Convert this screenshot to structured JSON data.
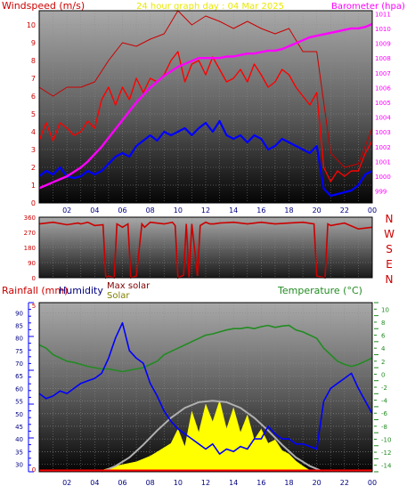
{
  "page": {
    "title": "24 hour graph day : 04 Mar 2025",
    "panel_top": {
      "left_label": "Windspeed (m/s)",
      "right_label": "Barometer (hpa)"
    },
    "panel_mid": {
      "compass": [
        "N",
        "W",
        "S",
        "E",
        "N"
      ]
    },
    "panel_bot": {
      "label_rain": "Rainfall (mm)",
      "label_hum": "Humidity",
      "label_maxsolar": "Max solar",
      "label_solar": "Solar",
      "label_temp": "Temperature (°C)"
    },
    "colors": {
      "windspeed": "#ff0000",
      "gust": "#cc0000",
      "avgwind": "#0000ff",
      "barometer": "#ff00ff",
      "direction": "#cc0000",
      "humidity": "#0000ff",
      "temperature": "#228b22",
      "solar": "#ffff00",
      "maxsolar": "#b0b0b0",
      "rainfall": "#ff0000"
    }
  },
  "chart_data": [
    {
      "type": "line",
      "x_ticks": [
        "02",
        "04",
        "06",
        "08",
        "10",
        "12",
        "14",
        "16",
        "18",
        "20",
        "22",
        "00"
      ],
      "x_hours": [
        0,
        24
      ],
      "y_left": {
        "label": "Windspeed (m/s)",
        "range": [
          0,
          10.8
        ],
        "ticks": [
          0,
          1,
          2,
          3,
          4,
          5,
          6,
          7,
          8,
          9,
          10
        ]
      },
      "y_right": {
        "label": "Barometer (hpa)",
        "range": [
          998.2,
          1011.2
        ],
        "ticks": [
          999,
          1000,
          1001,
          1002,
          1003,
          1004,
          1005,
          1006,
          1007,
          1008,
          1009,
          1010,
          1011
        ]
      },
      "series": [
        {
          "name": "Windspeed (m/s)",
          "axis": "left",
          "x": [
            0,
            0.5,
            1,
            1.5,
            2,
            2.5,
            3,
            3.5,
            4,
            4.5,
            5,
            5.5,
            6,
            6.5,
            7,
            7.5,
            8,
            8.5,
            9,
            9.5,
            10,
            10.5,
            11,
            11.5,
            12,
            12.5,
            13,
            13.5,
            14,
            14.5,
            15,
            15.5,
            16,
            16.5,
            17,
            17.5,
            18,
            18.5,
            19,
            19.5,
            20,
            20.5,
            21,
            21.5,
            22,
            22.5,
            23,
            23.5,
            24
          ],
          "y": [
            3.5,
            4.5,
            3.5,
            4.5,
            4.2,
            3.8,
            4,
            4.6,
            4.2,
            5.8,
            6.5,
            5.5,
            6.5,
            5.8,
            7,
            6.2,
            7,
            6.8,
            7.2,
            8,
            8.5,
            6.8,
            7.8,
            8,
            7.2,
            8.2,
            7.5,
            6.8,
            7,
            7.5,
            6.8,
            7.8,
            7.2,
            6.5,
            6.8,
            7.5,
            7.2,
            6.5,
            6,
            5.5,
            6.2,
            2,
            1.2,
            1.8,
            1.5,
            1.8,
            1.8,
            2.8,
            3.5
          ]
        },
        {
          "name": "Gust",
          "axis": "left",
          "x": [
            0,
            1,
            2,
            3,
            4,
            5,
            6,
            7,
            8,
            9,
            10,
            11,
            12,
            13,
            14,
            15,
            16,
            17,
            18,
            19,
            20,
            21,
            22,
            23,
            24
          ],
          "y": [
            6.5,
            6,
            6.5,
            6.5,
            6.8,
            8,
            9,
            8.8,
            9.2,
            9.5,
            10.8,
            10,
            10.5,
            10.2,
            9.8,
            10.2,
            9.8,
            9.5,
            9.8,
            8.5,
            8.5,
            2.8,
            2,
            2.2,
            4.2
          ]
        },
        {
          "name": "Average wind",
          "axis": "left",
          "x": [
            0,
            0.5,
            1,
            1.5,
            2,
            2.5,
            3,
            3.5,
            4,
            4.5,
            5,
            5.5,
            6,
            6.5,
            7,
            7.5,
            8,
            8.5,
            9,
            9.5,
            10,
            10.5,
            11,
            11.5,
            12,
            12.5,
            13,
            13.5,
            14,
            14.5,
            15,
            15.5,
            16,
            16.5,
            17,
            17.5,
            18,
            18.5,
            19,
            19.5,
            20,
            20.5,
            21,
            21.5,
            22,
            22.5,
            23,
            23.5,
            24
          ],
          "y": [
            1.5,
            1.8,
            1.6,
            2,
            1.5,
            1.4,
            1.5,
            1.8,
            1.6,
            1.8,
            2.2,
            2.6,
            2.8,
            2.6,
            3.2,
            3.5,
            3.8,
            3.5,
            4,
            3.8,
            4,
            4.2,
            3.8,
            4.2,
            4.5,
            4,
            4.6,
            3.8,
            3.6,
            3.8,
            3.4,
            3.8,
            3.6,
            3,
            3.2,
            3.6,
            3.4,
            3.2,
            3,
            2.8,
            3.2,
            0.8,
            0.4,
            0.5,
            0.6,
            0.7,
            1,
            1.6,
            1.8
          ]
        },
        {
          "name": "Barometer (hpa)",
          "axis": "right",
          "x": [
            0,
            0.5,
            1,
            1.5,
            2,
            2.5,
            3,
            3.5,
            4,
            4.5,
            5,
            5.5,
            6,
            6.5,
            7,
            7.5,
            8,
            8.5,
            9,
            9.5,
            10,
            10.5,
            11,
            11.5,
            12,
            12.5,
            13,
            13.5,
            14,
            14.5,
            15,
            15.5,
            16,
            16.5,
            17,
            17.5,
            18,
            18.5,
            19,
            19.5,
            20,
            20.5,
            21,
            21.5,
            22,
            22.5,
            23,
            23.5,
            24
          ],
          "y": [
            999.2,
            999.4,
            999.6,
            999.8,
            1000,
            1000.3,
            1000.6,
            1001,
            1001.5,
            1002,
            1002.6,
            1003.2,
            1003.8,
            1004.4,
            1005,
            1005.5,
            1006,
            1006.4,
            1006.8,
            1007.1,
            1007.4,
            1007.6,
            1007.8,
            1008,
            1008,
            1008,
            1008,
            1008.1,
            1008.1,
            1008.2,
            1008.3,
            1008.3,
            1008.4,
            1008.5,
            1008.5,
            1008.6,
            1008.8,
            1009,
            1009.2,
            1009.4,
            1009.5,
            1009.6,
            1009.7,
            1009.8,
            1009.9,
            1010,
            1010,
            1010.1,
            1010.3
          ]
        }
      ]
    },
    {
      "type": "line",
      "y_ticks": [
        0,
        90,
        180,
        270,
        360
      ],
      "y_range": [
        0,
        360
      ],
      "series": [
        {
          "name": "Wind direction",
          "x": [
            0,
            1,
            2,
            2.8,
            3,
            3.5,
            4,
            4.6,
            4.8,
            5,
            5.4,
            5.6,
            6,
            6.4,
            6.6,
            7,
            7.4,
            7.6,
            8,
            9,
            9.6,
            9.8,
            10,
            10.4,
            10.6,
            10.8,
            11,
            11.4,
            11.6,
            12,
            12.3,
            12.6,
            13,
            14,
            15,
            16,
            17,
            18,
            19,
            19.8,
            20,
            20.6,
            20.8,
            21,
            22,
            23,
            24
          ],
          "y": [
            320,
            330,
            315,
            325,
            320,
            330,
            310,
            315,
            0,
            10,
            0,
            320,
            300,
            320,
            0,
            10,
            320,
            300,
            330,
            320,
            330,
            310,
            0,
            15,
            320,
            0,
            320,
            10,
            310,
            330,
            320,
            320,
            325,
            330,
            320,
            330,
            320,
            325,
            330,
            320,
            10,
            0,
            320,
            310,
            325,
            290,
            300
          ]
        }
      ]
    },
    {
      "type": "line",
      "x_ticks": [
        "02",
        "04",
        "06",
        "08",
        "10",
        "12",
        "14",
        "16",
        "18",
        "20",
        "22",
        "00"
      ],
      "y_left": {
        "label": "Humidity",
        "range": [
          27,
          94
        ],
        "ticks": [
          30,
          35,
          40,
          45,
          50,
          55,
          60,
          65,
          70,
          75,
          80,
          85,
          90
        ]
      },
      "y_rain": {
        "label": "Rainfall (mm)",
        "range": [
          0,
          5
        ]
      },
      "y_right": {
        "label": "Temperature (°C)",
        "range": [
          -15,
          11
        ],
        "ticks": [
          -14,
          -12,
          -10,
          -8,
          -6,
          -4,
          -2,
          0,
          2,
          4,
          6,
          8,
          10
        ]
      },
      "series": [
        {
          "name": "Humidity",
          "axis": "left",
          "x": [
            0,
            0.5,
            1,
            1.5,
            2,
            2.5,
            3,
            3.5,
            4,
            4.5,
            5,
            5.5,
            6,
            6.5,
            7,
            7.5,
            8,
            8.5,
            9,
            9.5,
            10,
            10.5,
            11,
            11.5,
            12,
            12.5,
            13,
            13.5,
            14,
            14.5,
            15,
            15.5,
            16,
            16.5,
            17,
            17.5,
            18,
            18.5,
            19,
            19.5,
            20,
            20.5,
            21,
            21.5,
            22,
            22.5,
            23,
            23.5,
            24
          ],
          "y": [
            58,
            56,
            57,
            59,
            58,
            60,
            62,
            63,
            64,
            66,
            72,
            80,
            86,
            75,
            72,
            70,
            62,
            57,
            51,
            47,
            44,
            42,
            40,
            38,
            36,
            38,
            34,
            36,
            35,
            37,
            36,
            40,
            40,
            45,
            42,
            40,
            40,
            38,
            38,
            37,
            36,
            55,
            60,
            62,
            64,
            66,
            60,
            55,
            50
          ]
        },
        {
          "name": "Temperature (°C)",
          "axis": "right",
          "x": [
            0,
            0.5,
            1,
            1.5,
            2,
            2.5,
            3,
            3.5,
            4,
            4.5,
            5,
            5.5,
            6,
            6.5,
            7,
            7.5,
            8,
            8.5,
            9,
            9.5,
            10,
            10.5,
            11,
            11.5,
            12,
            12.5,
            13,
            13.5,
            14,
            14.5,
            15,
            15.5,
            16,
            16.5,
            17,
            17.5,
            18,
            18.5,
            19,
            19.5,
            20,
            20.5,
            21,
            21.5,
            22,
            22.5,
            23,
            23.5,
            24
          ],
          "y": [
            4.5,
            4,
            3,
            2.5,
            2,
            1.8,
            1.5,
            1.2,
            1,
            0.8,
            0.8,
            0.6,
            0.4,
            0.6,
            0.8,
            1,
            1.5,
            2,
            3,
            3.5,
            4,
            4.5,
            5,
            5.5,
            6,
            6.2,
            6.5,
            6.8,
            7,
            7,
            7.2,
            7,
            7.3,
            7.5,
            7.2,
            7.4,
            7.5,
            6.8,
            6.5,
            6,
            5.5,
            4,
            3,
            2,
            1.5,
            1.2,
            1.5,
            2,
            2.5
          ]
        },
        {
          "name": "Solar",
          "axis": "none",
          "x": [
            4.5,
            5,
            5.5,
            6,
            6.5,
            7,
            7.5,
            8,
            8.5,
            9,
            9.5,
            10,
            10.5,
            11,
            11.5,
            12,
            12.5,
            13,
            13.5,
            14,
            14.5,
            15,
            15.5,
            16,
            16.5,
            17,
            17.5,
            18,
            18.5,
            19,
            19.5
          ],
          "y": [
            0.02,
            0.05,
            0.08,
            0.1,
            0.12,
            0.14,
            0.18,
            0.22,
            0.28,
            0.34,
            0.4,
            0.6,
            0.35,
            0.85,
            0.55,
            0.95,
            0.7,
            1,
            0.6,
            0.9,
            0.55,
            0.8,
            0.45,
            0.6,
            0.4,
            0.45,
            0.3,
            0.25,
            0.15,
            0.08,
            0.02
          ]
        },
        {
          "name": "Max solar",
          "axis": "none",
          "x": [
            4.5,
            5.5,
            6.5,
            7.5,
            8.5,
            9.5,
            10.5,
            11.5,
            12.5,
            13.5,
            14.5,
            15.5,
            16.5,
            17.5,
            18.5,
            19.5,
            20.5
          ],
          "y": [
            0,
            0.08,
            0.2,
            0.38,
            0.58,
            0.76,
            0.9,
            0.98,
            1,
            0.98,
            0.9,
            0.76,
            0.58,
            0.38,
            0.2,
            0.08,
            0
          ]
        },
        {
          "name": "Rainfall (mm)",
          "axis": "rain",
          "x": [
            0,
            24
          ],
          "y": [
            0,
            0
          ]
        }
      ]
    }
  ]
}
